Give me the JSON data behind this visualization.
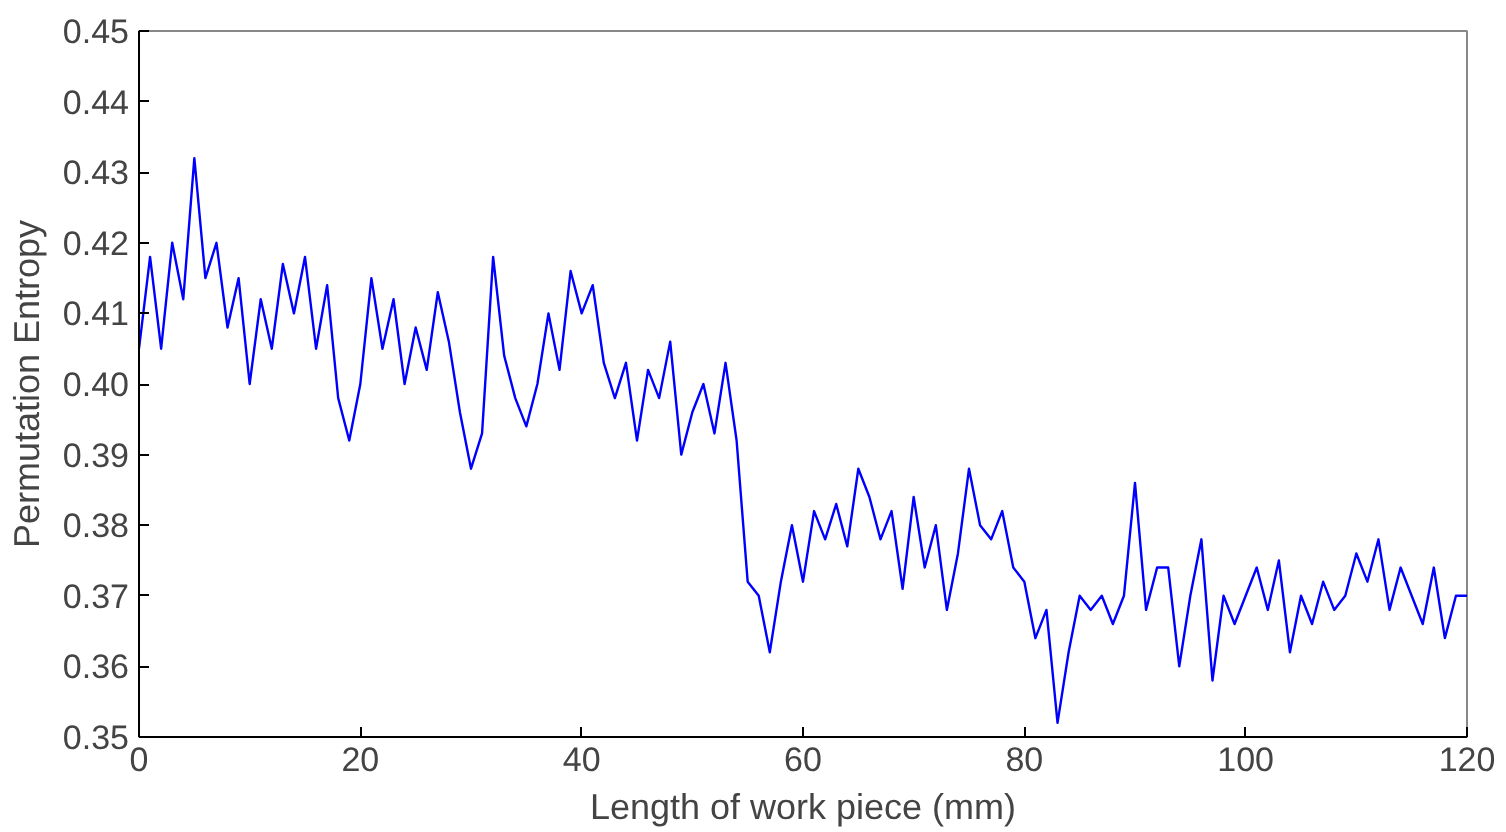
{
  "chart_data": {
    "type": "line",
    "xlabel": "Length of work piece (mm)",
    "ylabel": "Permutation Entropy",
    "x": [
      0,
      1,
      2,
      3,
      4,
      5,
      6,
      7,
      8,
      9,
      10,
      11,
      12,
      13,
      14,
      15,
      16,
      17,
      18,
      19,
      20,
      21,
      22,
      23,
      24,
      25,
      26,
      27,
      28,
      29,
      30,
      31,
      32,
      33,
      34,
      35,
      36,
      37,
      38,
      39,
      40,
      41,
      42,
      43,
      44,
      45,
      46,
      47,
      48,
      49,
      50,
      51,
      52,
      53,
      54,
      55,
      56,
      57,
      58,
      59,
      60,
      61,
      62,
      63,
      64,
      65,
      66,
      67,
      68,
      69,
      70,
      71,
      72,
      73,
      74,
      75,
      76,
      77,
      78,
      79,
      80,
      81,
      82,
      83,
      84,
      85,
      86,
      87,
      88,
      89,
      90,
      91,
      92,
      93,
      94,
      95,
      96,
      97,
      98,
      99,
      100,
      101,
      102,
      103,
      104,
      105,
      106,
      107,
      108,
      109,
      110,
      111,
      112,
      113,
      114,
      115,
      116,
      117,
      118,
      119,
      120
    ],
    "series": [
      {
        "color": "#0000ff",
        "values": [
          0.405,
          0.418,
          0.405,
          0.42,
          0.412,
          0.432,
          0.415,
          0.42,
          0.408,
          0.415,
          0.4,
          0.412,
          0.405,
          0.417,
          0.41,
          0.418,
          0.405,
          0.414,
          0.398,
          0.392,
          0.4,
          0.415,
          0.405,
          0.412,
          0.4,
          0.408,
          0.402,
          0.413,
          0.406,
          0.396,
          0.388,
          0.393,
          0.418,
          0.404,
          0.398,
          0.394,
          0.4,
          0.41,
          0.402,
          0.416,
          0.41,
          0.414,
          0.403,
          0.398,
          0.403,
          0.392,
          0.402,
          0.398,
          0.406,
          0.39,
          0.396,
          0.4,
          0.393,
          0.403,
          0.392,
          0.372,
          0.37,
          0.362,
          0.372,
          0.38,
          0.372,
          0.382,
          0.378,
          0.383,
          0.377,
          0.388,
          0.384,
          0.378,
          0.382,
          0.371,
          0.384,
          0.374,
          0.38,
          0.368,
          0.376,
          0.388,
          0.38,
          0.378,
          0.382,
          0.374,
          0.372,
          0.364,
          0.368,
          0.352,
          0.362,
          0.37,
          0.368,
          0.37,
          0.366,
          0.37,
          0.386,
          0.368,
          0.374,
          0.374,
          0.36,
          0.37,
          0.378,
          0.358,
          0.37,
          0.366,
          0.37,
          0.374,
          0.368,
          0.375,
          0.362,
          0.37,
          0.366,
          0.372,
          0.368,
          0.37,
          0.376,
          0.372,
          0.378,
          0.368,
          0.374,
          0.37,
          0.366,
          0.374,
          0.364,
          0.37,
          0.37
        ]
      }
    ],
    "xlim": [
      0,
      120
    ],
    "xticks": [
      0,
      20,
      40,
      60,
      80,
      100,
      120
    ],
    "ylim": [
      0.35,
      0.45
    ],
    "yticks": [
      0.35,
      0.36,
      0.37,
      0.38,
      0.39,
      {
        "value": 0.4,
        "label": "0.40"
      },
      0.41,
      0.42,
      0.43,
      0.44,
      0.45
    ],
    "grid": false
  }
}
